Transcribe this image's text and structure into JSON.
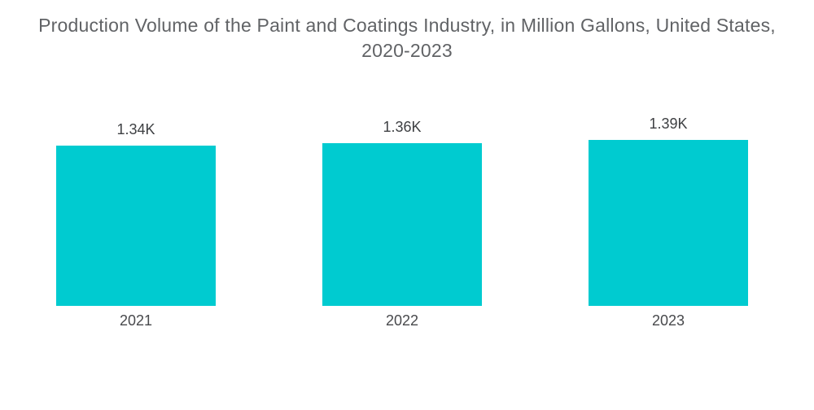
{
  "header": {
    "title_line1": "Production Volume of the Paint and Coatings Industry, in Million Gallons, United States,",
    "title_line2": "2020-2023"
  },
  "chart_data": {
    "type": "bar",
    "title": "Production Volume of the Paint and Coatings Industry, in Million Gallons, United States, 2020-2023",
    "categories": [
      "2021",
      "2022",
      "2023"
    ],
    "values": [
      1340,
      1360,
      1390
    ],
    "value_labels": [
      "1.34K",
      "1.36K",
      "1.39K"
    ],
    "xlabel": "",
    "ylabel": "",
    "ylim": [
      0,
      1390
    ],
    "grid": false,
    "legend_position": "none",
    "bar_color": "#00CBD0",
    "background_color": "#FFFFFF",
    "title_color": "#616366",
    "value_label_color": "#3E4043",
    "category_label_color": "#48494C"
  }
}
